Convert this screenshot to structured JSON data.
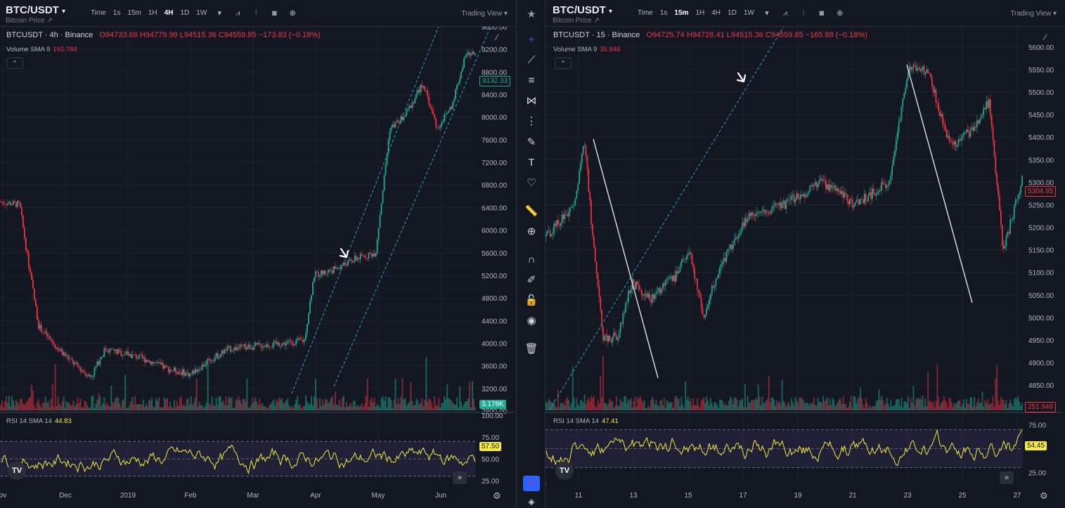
{
  "left": {
    "symbol": "BTC/USDT",
    "subtitle": "Bitcoin Price ↗",
    "timeframes": [
      "Time",
      "1s",
      "15m",
      "1H",
      "4H",
      "1D",
      "1W"
    ],
    "active_tf": "4H",
    "trading_view": "Trading View",
    "legend_name": "BTCUSDT · 4h · Binance",
    "legend_ohlc": "O94733.68  H94779.99  L94515.36  C94559.85  −173.83 (−0.18%)",
    "volume_label": "Volume SMA 9",
    "volume_value": "192.784",
    "rsi_label": "RSI 14 SMA 14",
    "rsi_value": "44.83",
    "price_tag": "9132.33",
    "volume_tag": "3.178K",
    "rsi_tag": "57.50",
    "y_ticks": [
      "9600.00",
      "9200.00",
      "8800.00",
      "8400.00",
      "8000.00",
      "7600.00",
      "7200.00",
      "6800.00",
      "6400.00",
      "6000.00",
      "5600.00",
      "5200.00",
      "4800.00",
      "4400.00",
      "4000.00",
      "3600.00",
      "3200.00",
      "2800.00"
    ],
    "rsi_ticks": [
      "100.00",
      "75.00",
      "50.00",
      "25.00"
    ],
    "x_ticks": [
      "ov",
      "Dec",
      "2019",
      "Feb",
      "Mar",
      "Apr",
      "May",
      "Jun"
    ]
  },
  "right": {
    "symbol": "BTC/USDT",
    "subtitle": "Bitcoin Price ↗",
    "timeframes": [
      "Time",
      "1s",
      "15m",
      "1H",
      "4H",
      "1D",
      "1W"
    ],
    "active_tf": "15m",
    "trading_view": "Trading View",
    "legend_name": "BTCUSDT · 15 · Binance",
    "legend_ohlc": "O94725.74  H94728.41  L94515.36  C94559.85  −165.88 (−0.18%)",
    "volume_label": "Volume SMA 9",
    "volume_value": "35.946",
    "rsi_label": "RSI 14 SMA 14",
    "rsi_value": "47.41",
    "price_tag": "5304.95",
    "volume_tag": "251.946",
    "rsi_tag": "54.45",
    "y_ticks": [
      "5600.00",
      "5550.00",
      "5500.00",
      "5450.00",
      "5400.00",
      "5350.00",
      "5300.00",
      "5250.00",
      "5200.00",
      "5150.00",
      "5100.00",
      "5050.00",
      "5000.00",
      "4950.00",
      "4900.00",
      "4850.00"
    ],
    "rsi_ticks": [
      "75.00",
      "25.00"
    ],
    "x_ticks": [
      "11",
      "13",
      "15",
      "17",
      "19",
      "21",
      "23",
      "25",
      "27"
    ]
  },
  "chart_data": [
    {
      "type": "candlestick",
      "title": "BTCUSDT · 4h · Binance",
      "x_labels": [
        "ov",
        "Dec",
        "2019",
        "Feb",
        "Mar",
        "Apr",
        "May",
        "Jun"
      ],
      "ylim": [
        2800,
        9600
      ],
      "price_path": [
        [
          0,
          6500
        ],
        [
          0.04,
          6450
        ],
        [
          0.055,
          5600
        ],
        [
          0.08,
          4300
        ],
        [
          0.12,
          3900
        ],
        [
          0.16,
          3600
        ],
        [
          0.19,
          3400
        ],
        [
          0.22,
          3900
        ],
        [
          0.27,
          3800
        ],
        [
          0.31,
          3700
        ],
        [
          0.35,
          3550
        ],
        [
          0.4,
          3450
        ],
        [
          0.44,
          3700
        ],
        [
          0.48,
          3900
        ],
        [
          0.54,
          3950
        ],
        [
          0.6,
          4000
        ],
        [
          0.64,
          4050
        ],
        [
          0.66,
          5200
        ],
        [
          0.7,
          5300
        ],
        [
          0.75,
          5500
        ],
        [
          0.79,
          5600
        ],
        [
          0.82,
          7800
        ],
        [
          0.85,
          8000
        ],
        [
          0.89,
          8600
        ],
        [
          0.92,
          7800
        ],
        [
          0.95,
          8200
        ],
        [
          0.98,
          9100
        ],
        [
          1,
          9132
        ]
      ],
      "rsi_range": [
        25,
        100
      ],
      "rsi_bands": [
        30,
        70
      ]
    },
    {
      "type": "candlestick",
      "title": "BTCUSDT · 15 · Binance",
      "x_labels": [
        "11",
        "13",
        "15",
        "17",
        "19",
        "21",
        "23",
        "25",
        "27"
      ],
      "ylim": [
        4830,
        5620
      ],
      "price_path": [
        [
          0,
          5180
        ],
        [
          0.06,
          5250
        ],
        [
          0.08,
          5400
        ],
        [
          0.1,
          5150
        ],
        [
          0.12,
          4950
        ],
        [
          0.15,
          4960
        ],
        [
          0.18,
          5080
        ],
        [
          0.22,
          5040
        ],
        [
          0.27,
          5090
        ],
        [
          0.3,
          5150
        ],
        [
          0.33,
          5000
        ],
        [
          0.36,
          5100
        ],
        [
          0.42,
          5220
        ],
        [
          0.5,
          5250
        ],
        [
          0.58,
          5300
        ],
        [
          0.65,
          5250
        ],
        [
          0.72,
          5300
        ],
        [
          0.76,
          5550
        ],
        [
          0.8,
          5550
        ],
        [
          0.85,
          5380
        ],
        [
          0.9,
          5420
        ],
        [
          0.93,
          5480
        ],
        [
          0.96,
          5150
        ],
        [
          1,
          5305
        ]
      ],
      "rsi_range": [
        15,
        85
      ],
      "rsi_bands": [
        30,
        70
      ]
    }
  ],
  "toolbar": [
    "crosshair",
    "trend-line",
    "horizontal-lines",
    "pitchfork",
    "fib-levels",
    "brush",
    "text",
    "heart",
    "ruler",
    "zoom-in",
    "magnet",
    "lock-pencil",
    "lock",
    "eye",
    "trash"
  ]
}
